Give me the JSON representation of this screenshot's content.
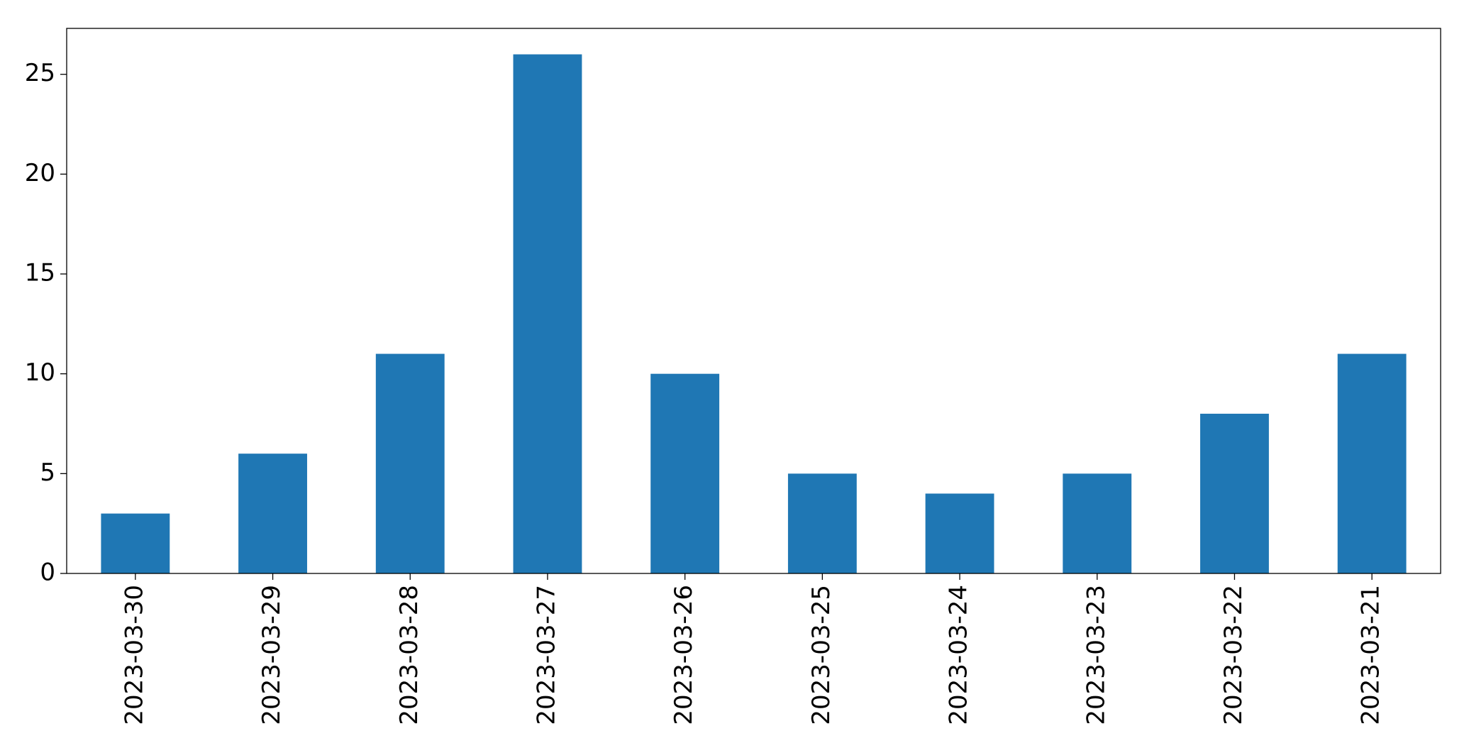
{
  "chart_data": {
    "type": "bar",
    "categories": [
      "2023-03-30",
      "2023-03-29",
      "2023-03-28",
      "2023-03-27",
      "2023-03-26",
      "2023-03-25",
      "2023-03-24",
      "2023-03-23",
      "2023-03-22",
      "2023-03-21"
    ],
    "values": [
      3,
      6,
      11,
      26,
      10,
      5,
      4,
      5,
      8,
      11
    ],
    "color": "#1f77b4",
    "ylim": [
      0,
      27.3
    ],
    "yticks": [
      0,
      5,
      10,
      15,
      20,
      25
    ]
  }
}
